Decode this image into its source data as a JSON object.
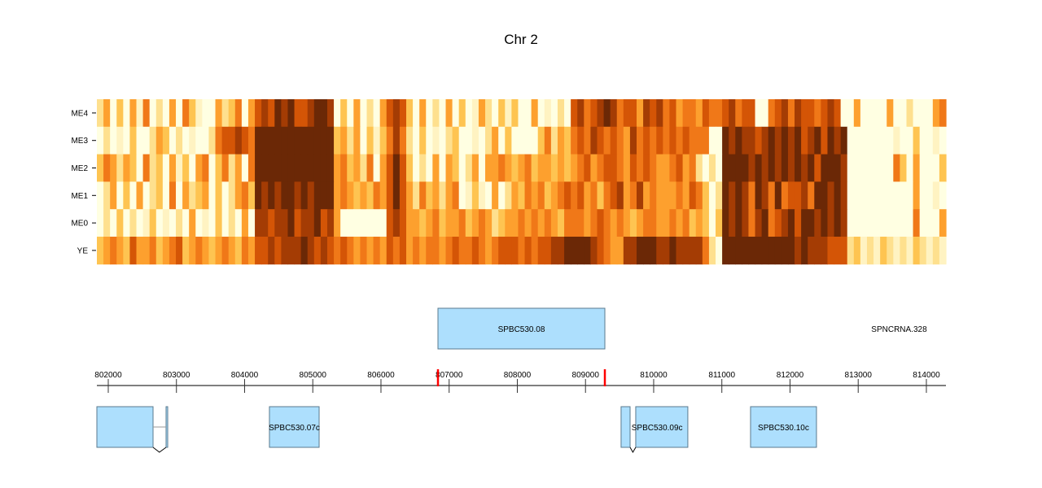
{
  "chart_data": {
    "type": "heatmap",
    "title": "Chr 2",
    "rows": [
      "ME4",
      "ME3",
      "ME2",
      "ME1",
      "ME0",
      "YE"
    ],
    "x_range_bp": [
      801833,
      814287
    ],
    "levels_note_scale": [
      0,
      8
    ],
    "palette": [
      "#FFFFE2",
      "#FFF3C2",
      "#FEE08E",
      "#FEC451",
      "#FDA02E",
      "#F07818",
      "#D45506",
      "#A43C04",
      "#6B2806"
    ],
    "values": {
      "ME4": "240304150204053100423504676878667887030402046763040204030142031300401020675678756647675645546556756600567576656760040000400200045",
      "ME3": "020103002430201002566765888888888888342403135752030102300102403000035243565765654756565656555008787767878786786878000000010030010",
      "ME2": "354243052304130450352405888888888888453425046863020404302404454345344343456456654656544564520208888787878787868887000000053040003",
      "ME1": "024030402305042340302453878788787888454343546864253424501310402435453456564535674574544454653028787587585667588787000000000040010",
      "ME0": "020302013010204010302040776778677867400000006764434534453454234454545435554565454345544545343038787578567868878787000000000050004",
      "YE": "345436445345634543454354667677787676565454546564545545655654566656566778888765447788877877775208888888888878777666231213212132121"
    },
    "axis": {
      "ticks": [
        802000,
        803000,
        804000,
        805000,
        806000,
        807000,
        808000,
        809000,
        810000,
        811000,
        812000,
        813000,
        814000
      ],
      "tick_labels": [
        "802000",
        "803000",
        "804000",
        "805000",
        "806000",
        "807000",
        "808000",
        "809000",
        "810000",
        "811000",
        "812000",
        "813000",
        "814000"
      ],
      "highlight_marks": [
        806836,
        809284
      ],
      "highlight_color": "#FF0000"
    },
    "forward_genes": [
      {
        "name": "SPBC530.08",
        "exons": [
          [
            806836,
            809284
          ]
        ]
      },
      {
        "name": "SPNCRNA.328",
        "label_only_at": 813600
      }
    ],
    "reverse_genes": [
      {
        "name": "",
        "exons": [
          [
            801833,
            802657
          ],
          [
            802848,
            802860
          ]
        ],
        "intron_marker": 802750
      },
      {
        "name": "SPBC530.07c",
        "exons": [
          [
            804364,
            805093
          ]
        ]
      },
      {
        "name": "SPBC530.09c",
        "exons": [
          [
            809522,
            809654
          ],
          [
            809737,
            810501
          ]
        ],
        "intron_marker": 809695,
        "label_at": 810050
      },
      {
        "name": "SPBC530.10c",
        "exons": [
          [
            811421,
            812388
          ]
        ]
      }
    ],
    "gene_fill": "#ADDFFD",
    "gene_stroke": "#5A7A8E"
  }
}
